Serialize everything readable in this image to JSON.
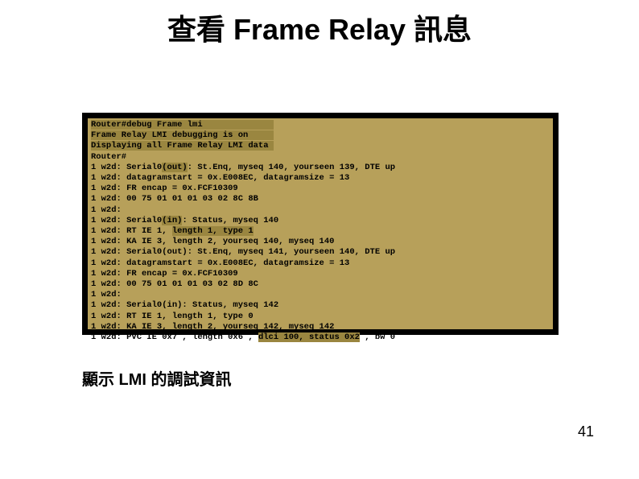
{
  "title": "查看 Frame Relay 訊息",
  "caption": "顯示 LMI 的調試資訊",
  "page_number": "41",
  "colors": {
    "background": "#ffffff",
    "terminal_bg": "#000000",
    "terminal_inner": "#b7a05a",
    "text": "#000000",
    "highlight": "#c8b870",
    "highlight_dark": "#9a8640"
  },
  "terminal": {
    "lines": [
      {
        "text": "Router#debug Frame lmi",
        "pad": "              ",
        "line_hl": true
      },
      {
        "text": "Frame Relay LMI debugging is on",
        "pad": "     ",
        "line_hl": true
      },
      {
        "text": "Displaying all Frame Relay LMI data",
        "pad": " ",
        "line_hl": true
      },
      {
        "text": "Router#"
      },
      {
        "prefix": "1 w2d: Serial0",
        "seg_hl": "(out)",
        "suffix": ": St.Enq, myseq 140, yourseen 139, DTE up"
      },
      {
        "text": "1 w2d: datagramstart = 0x.E008EC, datagramsize = 13"
      },
      {
        "text": "1 w2d: FR encap = 0x.FCF10309"
      },
      {
        "text": "1 w2d: 00 75 01 01 01 03 02 8C 8B"
      },
      {
        "text": "1 w2d:"
      },
      {
        "prefix": "1 w2d: Serial0",
        "seg_hl": "(in)",
        "suffix": ": Status, myseq 140"
      },
      {
        "prefix": "1 w2d: RT IE 1, ",
        "seg_hl": "length 1, type 1",
        "suffix": ""
      },
      {
        "text": "1 w2d: KA IE 3, length 2, yourseq 140, myseq 140"
      },
      {
        "text": "1 w2d: Serial0(out): St.Enq, myseq 141, yourseen 140, DTE up"
      },
      {
        "text": "1 w2d: datagramstart = 0x.E008EC, datagramsize = 13"
      },
      {
        "text": "1 w2d: FR encap = 0x.FCF10309"
      },
      {
        "text": "1 w2d: 00 75 01 01 01 03 02 8D 8C"
      },
      {
        "text": "1 w2d:"
      },
      {
        "text": "1 w2d: Serial0(in): Status, myseq 142"
      },
      {
        "text": "1 w2d: RT IE 1, length 1, type 0"
      },
      {
        "text": "1 w2d: KA IE 3, length 2, yourseq 142, myseq 142"
      },
      {
        "prefix": "1 w2d: PVC IE 0x7 , length 0x6 , ",
        "seg_hl": "dlci 100, status 0x2",
        "suffix": " , bw 0"
      }
    ]
  }
}
